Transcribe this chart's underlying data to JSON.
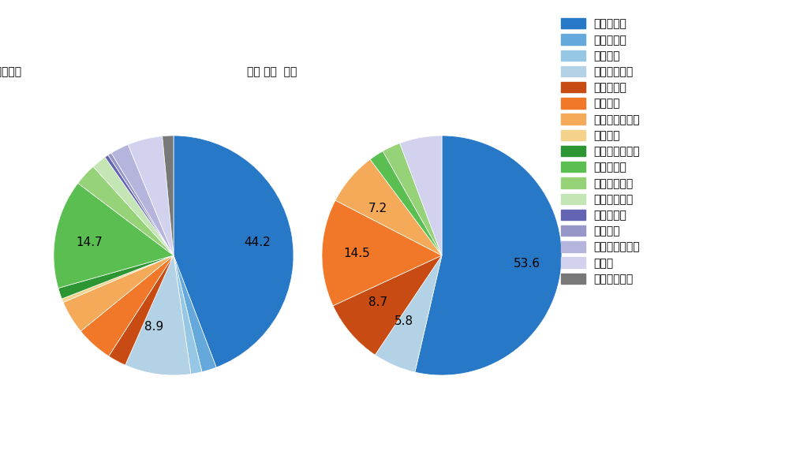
{
  "title_left": "セ・リーグ全プレイヤー",
  "title_right": "若林 晃弘  選手",
  "pitch_types": [
    "ストレート",
    "ツーシーム",
    "シュート",
    "カットボール",
    "スプリット",
    "フォーク",
    "チェンジアップ",
    "シンカー",
    "高速スライダー",
    "スライダー",
    "縦スライダー",
    "パワーカーブ",
    "スクリュー",
    "ナックル",
    "ナックルカーブ",
    "カーブ",
    "スローカーブ"
  ],
  "colors": [
    "#2878C8",
    "#64A8DC",
    "#96C8E6",
    "#B4D2E6",
    "#C84B14",
    "#F07828",
    "#F5AA5A",
    "#F5D28C",
    "#2D9632",
    "#5ABE50",
    "#96D278",
    "#C3E6B4",
    "#6464B4",
    "#9696C8",
    "#B4B4DC",
    "#D2D2EE",
    "#787878"
  ],
  "left_values": [
    44.2,
    2.0,
    1.5,
    8.9,
    2.5,
    5.0,
    4.5,
    0.5,
    1.5,
    14.7,
    3.0,
    2.0,
    0.5,
    0.5,
    2.5,
    4.7,
    1.5
  ],
  "right_values": [
    53.6,
    0.0,
    0.0,
    5.8,
    8.7,
    14.5,
    7.2,
    0.0,
    0.0,
    2.0,
    2.5,
    0.0,
    0.0,
    0.0,
    0.0,
    5.7,
    0.0
  ],
  "left_labels": [
    "44.2",
    "",
    "",
    "8.9",
    "",
    "",
    "",
    "",
    "",
    "14.7",
    "",
    "",
    "",
    "",
    "",
    "",
    ""
  ],
  "right_labels": [
    "53.6",
    "",
    "",
    "5.8",
    "8.7",
    "14.5",
    "7.2",
    "",
    "",
    "",
    "",
    "",
    "",
    "",
    "",
    "",
    ""
  ],
  "background_color": "#ffffff",
  "text_color": "#000000",
  "font_size_title": 16,
  "font_size_label": 11,
  "legend_fontsize": 11
}
